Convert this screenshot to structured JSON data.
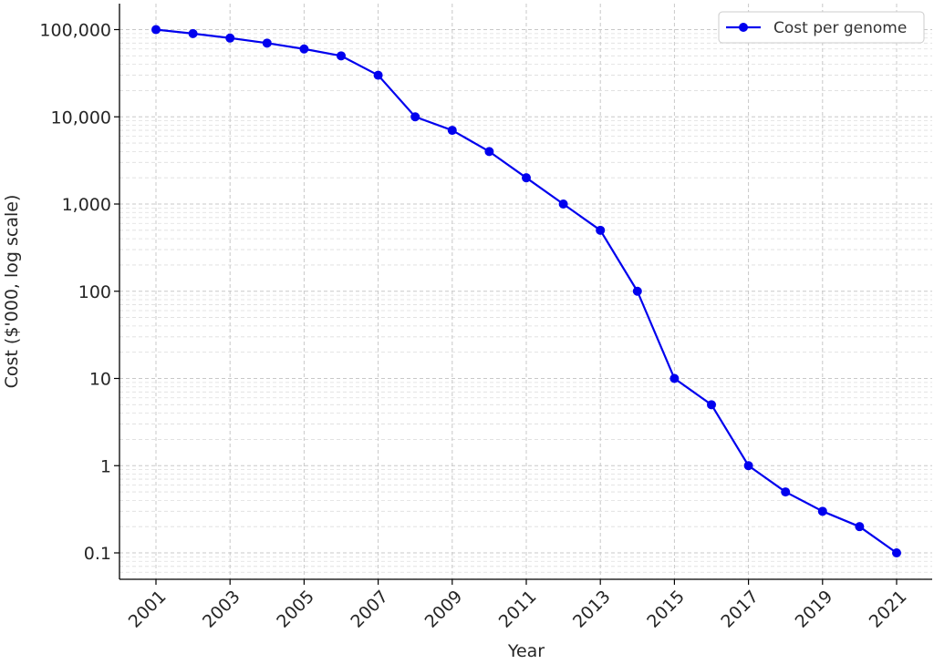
{
  "chart_data": {
    "type": "line",
    "title": "",
    "xlabel": "Year",
    "ylabel": "Cost ($'000, log scale)",
    "yscale": "log",
    "xlim": [
      2000,
      2022
    ],
    "ylim": [
      0.05,
      200000
    ],
    "grid": true,
    "legend_position": "top-right",
    "x_ticks": [
      2001,
      2003,
      2005,
      2007,
      2009,
      2011,
      2013,
      2015,
      2017,
      2019,
      2021
    ],
    "x_tick_labels": [
      "2001",
      "2003",
      "2005",
      "2007",
      "2009",
      "2011",
      "2013",
      "2015",
      "2017",
      "2019",
      "2021"
    ],
    "y_ticks": [
      0.1,
      1,
      10,
      100,
      1000,
      10000,
      100000
    ],
    "y_tick_labels": [
      "0.1",
      "1",
      "10",
      "100",
      "1,000",
      "10,000",
      "100,000"
    ],
    "series": [
      {
        "name": "Cost per genome",
        "color": "#0000ee",
        "marker": "circle",
        "x": [
          2001,
          2002,
          2003,
          2004,
          2005,
          2006,
          2007,
          2008,
          2009,
          2010,
          2011,
          2012,
          2013,
          2014,
          2015,
          2016,
          2017,
          2018,
          2019,
          2020,
          2021
        ],
        "y": [
          100000,
          90000,
          80000,
          70000,
          60000,
          50000,
          30000,
          10000,
          7000,
          4000,
          2000,
          1000,
          500,
          100,
          10,
          5,
          1,
          0.5,
          0.3,
          0.2,
          0.1
        ]
      }
    ]
  }
}
